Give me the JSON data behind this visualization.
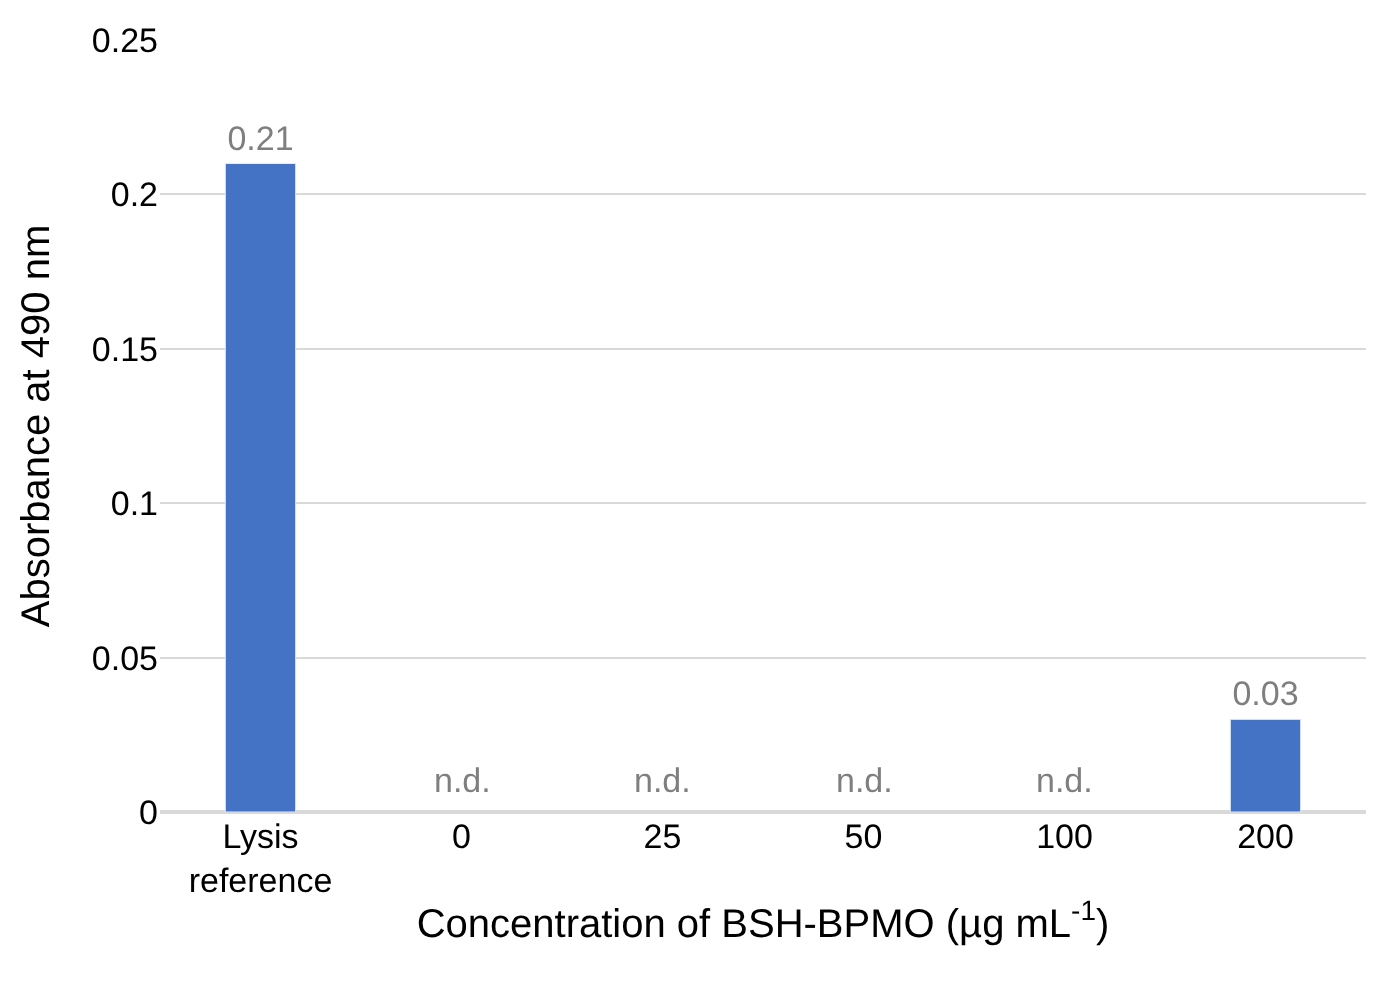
{
  "chart_data": {
    "type": "bar",
    "categories": [
      "Lysis reference",
      "0",
      "25",
      "50",
      "100",
      "200"
    ],
    "values": [
      0.21,
      null,
      null,
      null,
      null,
      0.03
    ],
    "value_labels": [
      "0.21",
      "n.d.",
      "n.d.",
      "n.d.",
      "n.d.",
      "0.03"
    ],
    "color": "#4472c4",
    "ylabel": "Absorbance at 490 nm",
    "xlabel": "Concentration of BSH-BPMO (µg mL$^{-1}$)",
    "ylim": [
      0,
      0.25
    ],
    "yticks": [
      0,
      0.05,
      0.1,
      0.15,
      0.2,
      0.25
    ],
    "grid": "y",
    "legend": false
  }
}
